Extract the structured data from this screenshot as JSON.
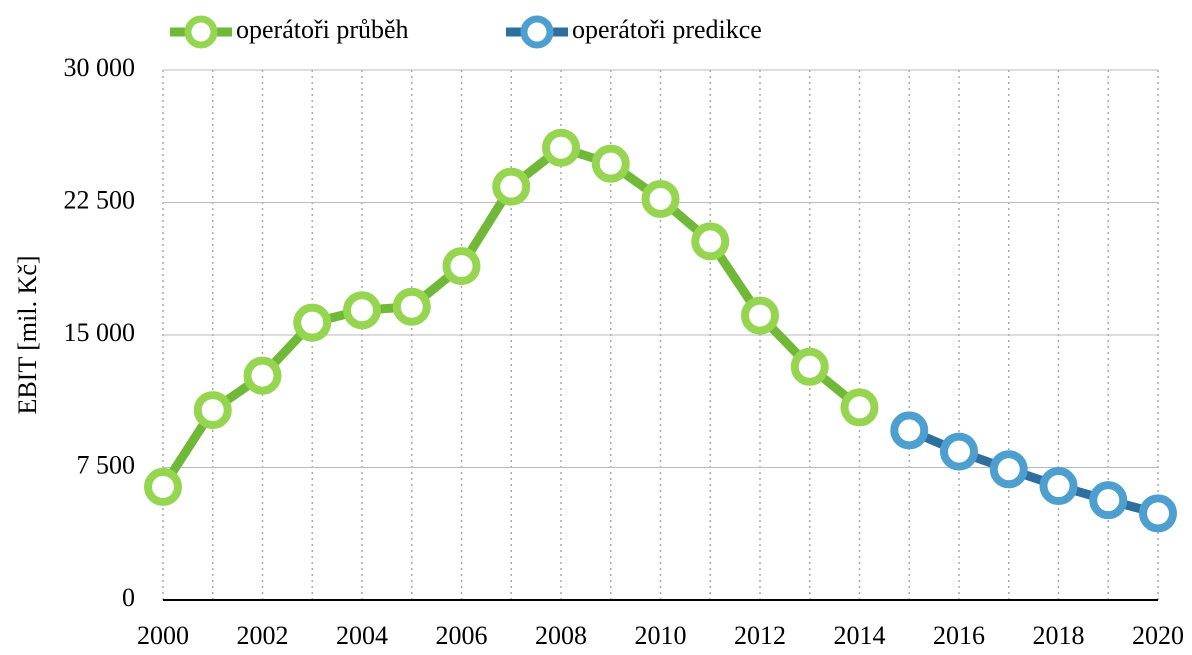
{
  "chart_data": {
    "type": "line",
    "y_label": "EBIT [mil. Kč]",
    "x": [
      2000,
      2001,
      2002,
      2003,
      2004,
      2005,
      2006,
      2007,
      2008,
      2009,
      2010,
      2011,
      2012,
      2013,
      2014,
      2015,
      2016,
      2017,
      2018,
      2019,
      2020
    ],
    "series": [
      {
        "name": "operátoři průběh",
        "color": "#70b838",
        "marker_color": "#95d54f",
        "values": [
          6400,
          10750,
          12700,
          15700,
          16400,
          16600,
          18900,
          23400,
          25600,
          24700,
          22700,
          20300,
          16100,
          13200,
          10900,
          null,
          null,
          null,
          null,
          null,
          null
        ]
      },
      {
        "name": "operátoři predikce",
        "color": "#2f6f9f",
        "marker_color": "#4d9fd0",
        "values": [
          null,
          null,
          null,
          null,
          null,
          null,
          null,
          null,
          null,
          null,
          null,
          null,
          null,
          null,
          null,
          9600,
          8400,
          7400,
          6450,
          5650,
          4900
        ]
      }
    ],
    "xlim": [
      2000,
      2020
    ],
    "xticks": [
      2000,
      2002,
      2004,
      2006,
      2008,
      2010,
      2012,
      2014,
      2016,
      2018,
      2020
    ],
    "ylim": [
      0,
      30000
    ],
    "yticks": [
      0,
      {
        "value": 7500,
        "label": "7 500"
      },
      {
        "value": 15000,
        "label": "15 000"
      },
      {
        "value": 22500,
        "label": "22 500"
      },
      {
        "value": 30000,
        "label": "30 000"
      }
    ],
    "grid": true,
    "legend": "top"
  }
}
